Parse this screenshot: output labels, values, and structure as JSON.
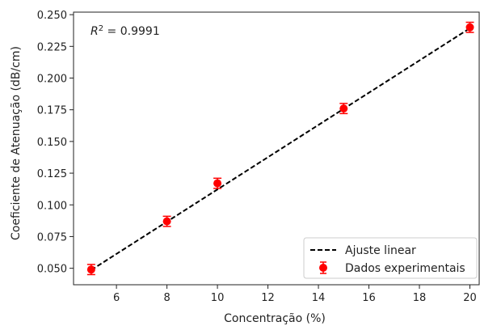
{
  "chart_data": {
    "type": "scatter",
    "xlabel": "Concentração (%)",
    "ylabel": "Coeficiente de Atenuação (dB/cm)",
    "xlim": [
      4.3,
      20.4
    ],
    "ylim": [
      0.037,
      0.252
    ],
    "x_ticks": [
      "6",
      "8",
      "10",
      "12",
      "14",
      "16",
      "18",
      "20"
    ],
    "x_tick_values": [
      6,
      8,
      10,
      12,
      14,
      16,
      18,
      20
    ],
    "y_ticks": [
      "0.050",
      "0.075",
      "0.100",
      "0.125",
      "0.150",
      "0.175",
      "0.200",
      "0.225",
      "0.250"
    ],
    "y_tick_values": [
      0.05,
      0.075,
      0.1,
      0.125,
      0.15,
      0.175,
      0.2,
      0.225,
      0.25
    ],
    "annotation": {
      "prefix": "R",
      "superscript": "2",
      "suffix": " = 0.9991"
    },
    "legend_position": "lower-right",
    "series": [
      {
        "name": "Dados experimentais",
        "kind": "errorbar",
        "color": "#ff0000",
        "x": [
          5,
          8,
          10,
          15,
          20
        ],
        "y": [
          0.049,
          0.087,
          0.117,
          0.176,
          0.24
        ],
        "yerr": [
          0.004,
          0.004,
          0.004,
          0.004,
          0.004
        ]
      },
      {
        "name": "Ajuste linear",
        "kind": "line",
        "color": "#000000",
        "dashed": true,
        "x": [
          5,
          20
        ],
        "y": [
          0.0486,
          0.2393
        ]
      }
    ]
  }
}
